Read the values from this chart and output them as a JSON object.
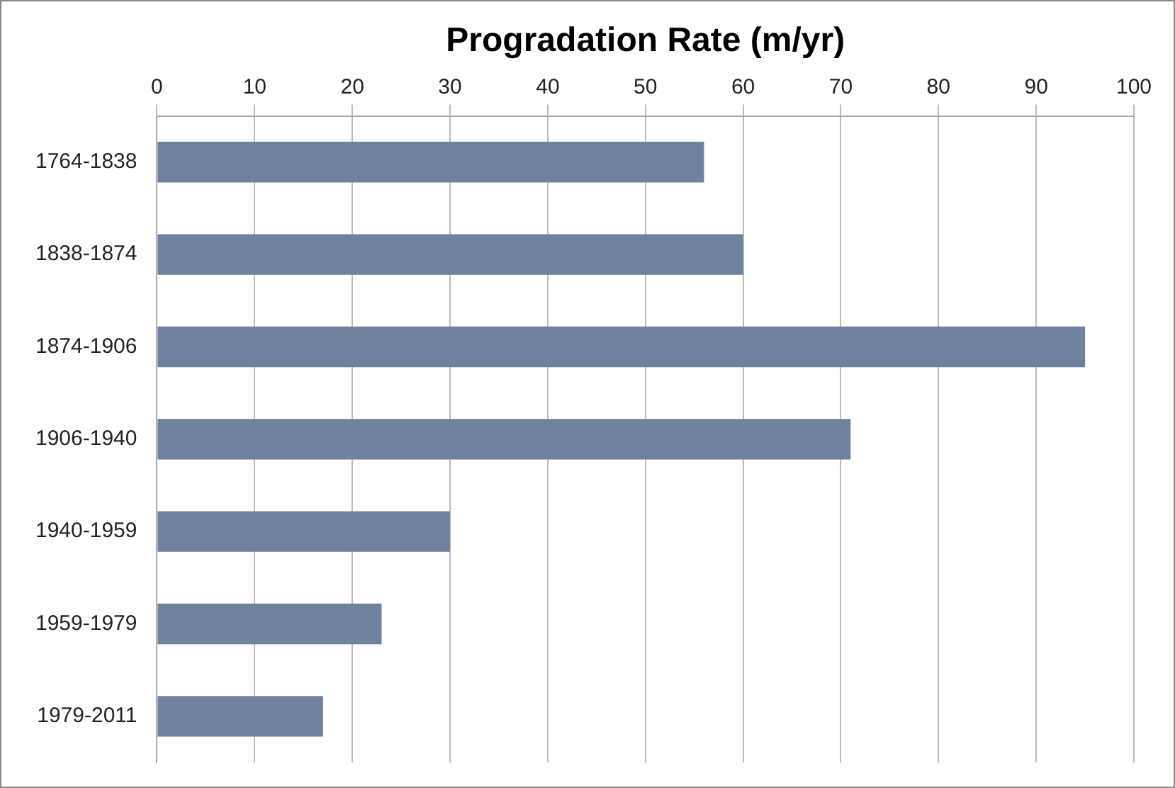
{
  "chart_data": {
    "type": "bar",
    "orientation": "horizontal",
    "xlabel": "Progradation Rate (m/yr)",
    "categories": [
      "1764-1838",
      "1838-1874",
      "1874-1906",
      "1906-1940",
      "1940-1959",
      "1959-1979",
      "1979-2011"
    ],
    "values": [
      56,
      60,
      95,
      71,
      30,
      23,
      17
    ],
    "color": "#6e819e",
    "xlim": [
      0,
      100
    ],
    "xticks": [
      0,
      10,
      20,
      30,
      40,
      50,
      60,
      70,
      80,
      90,
      100
    ],
    "grid": "x"
  }
}
